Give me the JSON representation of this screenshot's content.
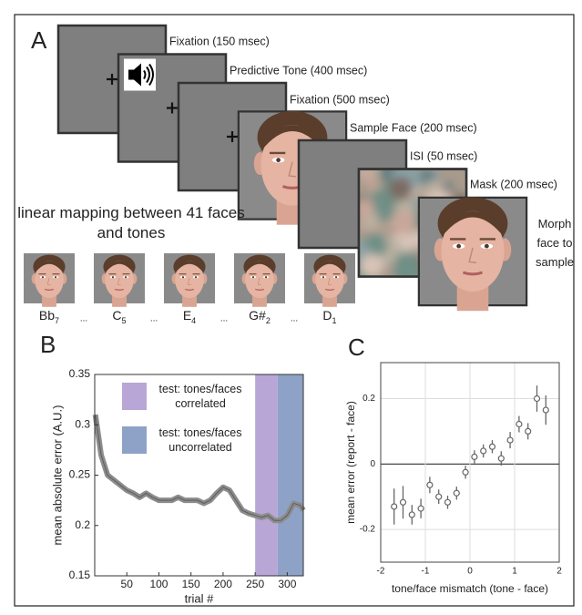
{
  "panel_a": {
    "label": "A",
    "frames": [
      {
        "label": "Fixation (150 msec)"
      },
      {
        "label": "Predictive Tone (400 msec)"
      },
      {
        "label": "Fixation (500 msec)"
      },
      {
        "label": "Sample Face (200 msec)"
      },
      {
        "label": "ISI (50 msec)"
      },
      {
        "label": "Mask (200 msec)"
      }
    ],
    "morph_label": "Morph face to sample",
    "mapping_label": "linear mapping between 41 faces and tones",
    "faces": [
      {
        "note": "Bb",
        "subscript": "7"
      },
      {
        "note": "C",
        "subscript": "5"
      },
      {
        "note": "E",
        "subscript": "4"
      },
      {
        "note": "G#",
        "subscript": "2"
      },
      {
        "note": "D",
        "subscript": "1"
      }
    ],
    "separator": "..."
  },
  "chart_data": [
    {
      "panel_label": "B",
      "type": "line",
      "xlabel": "trial #",
      "ylabel": "mean absolute error (A.U.)",
      "x": [
        1,
        10,
        20,
        30,
        40,
        50,
        60,
        70,
        80,
        90,
        100,
        110,
        120,
        130,
        140,
        150,
        160,
        170,
        180,
        190,
        200,
        210,
        220,
        230,
        240,
        250,
        260,
        270,
        280,
        290,
        300,
        310,
        320,
        325
      ],
      "values": [
        0.31,
        0.27,
        0.25,
        0.245,
        0.24,
        0.235,
        0.232,
        0.228,
        0.232,
        0.228,
        0.225,
        0.225,
        0.225,
        0.228,
        0.225,
        0.225,
        0.225,
        0.222,
        0.225,
        0.232,
        0.238,
        0.235,
        0.225,
        0.215,
        0.212,
        0.21,
        0.208,
        0.21,
        0.205,
        0.205,
        0.21,
        0.222,
        0.22,
        0.215
      ],
      "color": "#8c8c8c",
      "regions": [
        {
          "name": "test: tones/faces correlated",
          "color": "#b8a6d6",
          "xrange": [
            250,
            285
          ]
        },
        {
          "name": "test: tones/faces uncorrelated",
          "color": "#8ea2c8",
          "xrange": [
            285,
            325
          ]
        }
      ],
      "xlim": [
        0,
        325
      ],
      "xticks": [
        50,
        100,
        150,
        200,
        250,
        300
      ],
      "ylim": [
        0.15,
        0.35
      ],
      "yticks": [
        0.15,
        0.2,
        0.25,
        0.3,
        0.35
      ]
    },
    {
      "panel_label": "C",
      "type": "scatter",
      "xlabel": "tone/face mismatch (tone - face)",
      "ylabel": "mean error (report - face)",
      "x": [
        -1.7,
        -1.5,
        -1.3,
        -1.1,
        -0.9,
        -0.7,
        -0.5,
        -0.3,
        -0.1,
        0.1,
        0.3,
        0.5,
        0.7,
        0.9,
        1.1,
        1.3,
        1.5,
        1.7
      ],
      "values": [
        -0.13,
        -0.117,
        -0.155,
        -0.136,
        -0.064,
        -0.1,
        -0.117,
        -0.089,
        -0.025,
        0.022,
        0.04,
        0.053,
        0.017,
        0.073,
        0.122,
        0.1,
        0.2,
        0.165
      ],
      "errors": [
        0.055,
        0.05,
        0.03,
        0.03,
        0.025,
        0.022,
        0.02,
        0.02,
        0.02,
        0.02,
        0.02,
        0.02,
        0.022,
        0.025,
        0.025,
        0.025,
        0.04,
        0.045
      ],
      "color": "#666666",
      "xlim": [
        -2,
        2
      ],
      "xticks": [
        -2,
        -1,
        0,
        1,
        2
      ],
      "ylim": [
        -0.3,
        0.31
      ],
      "yticks": [
        -0.2,
        0,
        0.2
      ],
      "grid": true
    }
  ]
}
